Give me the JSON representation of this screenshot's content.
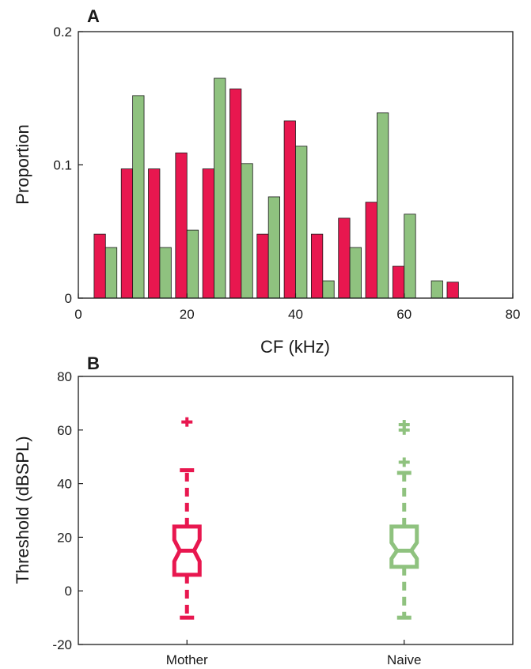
{
  "colors": {
    "mother": "#e8174f",
    "naive": "#8fc27f"
  },
  "chart_data": [
    {
      "type": "bar",
      "panel_label": "A",
      "xlabel": "CF (kHz)",
      "ylabel": "Proportion",
      "xlim": [
        0,
        80
      ],
      "ylim": [
        0,
        0.2
      ],
      "xticks": [
        0,
        20,
        40,
        60,
        80
      ],
      "yticks": [
        0,
        0.1,
        0.2
      ],
      "xtick_labels": [
        "0",
        "20",
        "40",
        "60",
        "80"
      ],
      "ytick_labels": [
        "0",
        "0.1",
        "0.2"
      ],
      "bin_centers": [
        5,
        10,
        15,
        20,
        25,
        30,
        35,
        40,
        45,
        50,
        55,
        60,
        65,
        70
      ],
      "series": [
        {
          "values": [
            0.048,
            0.097,
            0.097,
            0.109,
            0.097,
            0.157,
            0.048,
            0.133,
            0.048,
            0.06,
            0.072,
            0.024,
            0.0,
            0.012
          ]
        },
        {
          "values": [
            0.038,
            0.152,
            0.038,
            0.051,
            0.165,
            0.101,
            0.076,
            0.114,
            0.013,
            0.038,
            0.139,
            0.063,
            0.013,
            0.0
          ]
        }
      ]
    },
    {
      "type": "box",
      "panel_label": "B",
      "ylabel": "Threshold (dBSPL)",
      "ylim": [
        -20,
        80
      ],
      "yticks": [
        -20,
        0,
        20,
        40,
        60,
        80
      ],
      "ytick_labels": [
        "-20",
        "0",
        "20",
        "40",
        "60",
        "80"
      ],
      "categories": [
        "Mother",
        "Naive"
      ],
      "boxes": [
        {
          "q1": 6,
          "median": 15,
          "q3": 24,
          "notch_low": 11,
          "notch_high": 19,
          "whisker_low": -10,
          "whisker_high": 45,
          "outliers": [
            63
          ]
        },
        {
          "q1": 9,
          "median": 15,
          "q3": 24,
          "notch_low": 12,
          "notch_high": 18,
          "whisker_low": -10,
          "whisker_high": 44,
          "outliers": [
            48,
            60,
            62
          ]
        }
      ]
    }
  ]
}
